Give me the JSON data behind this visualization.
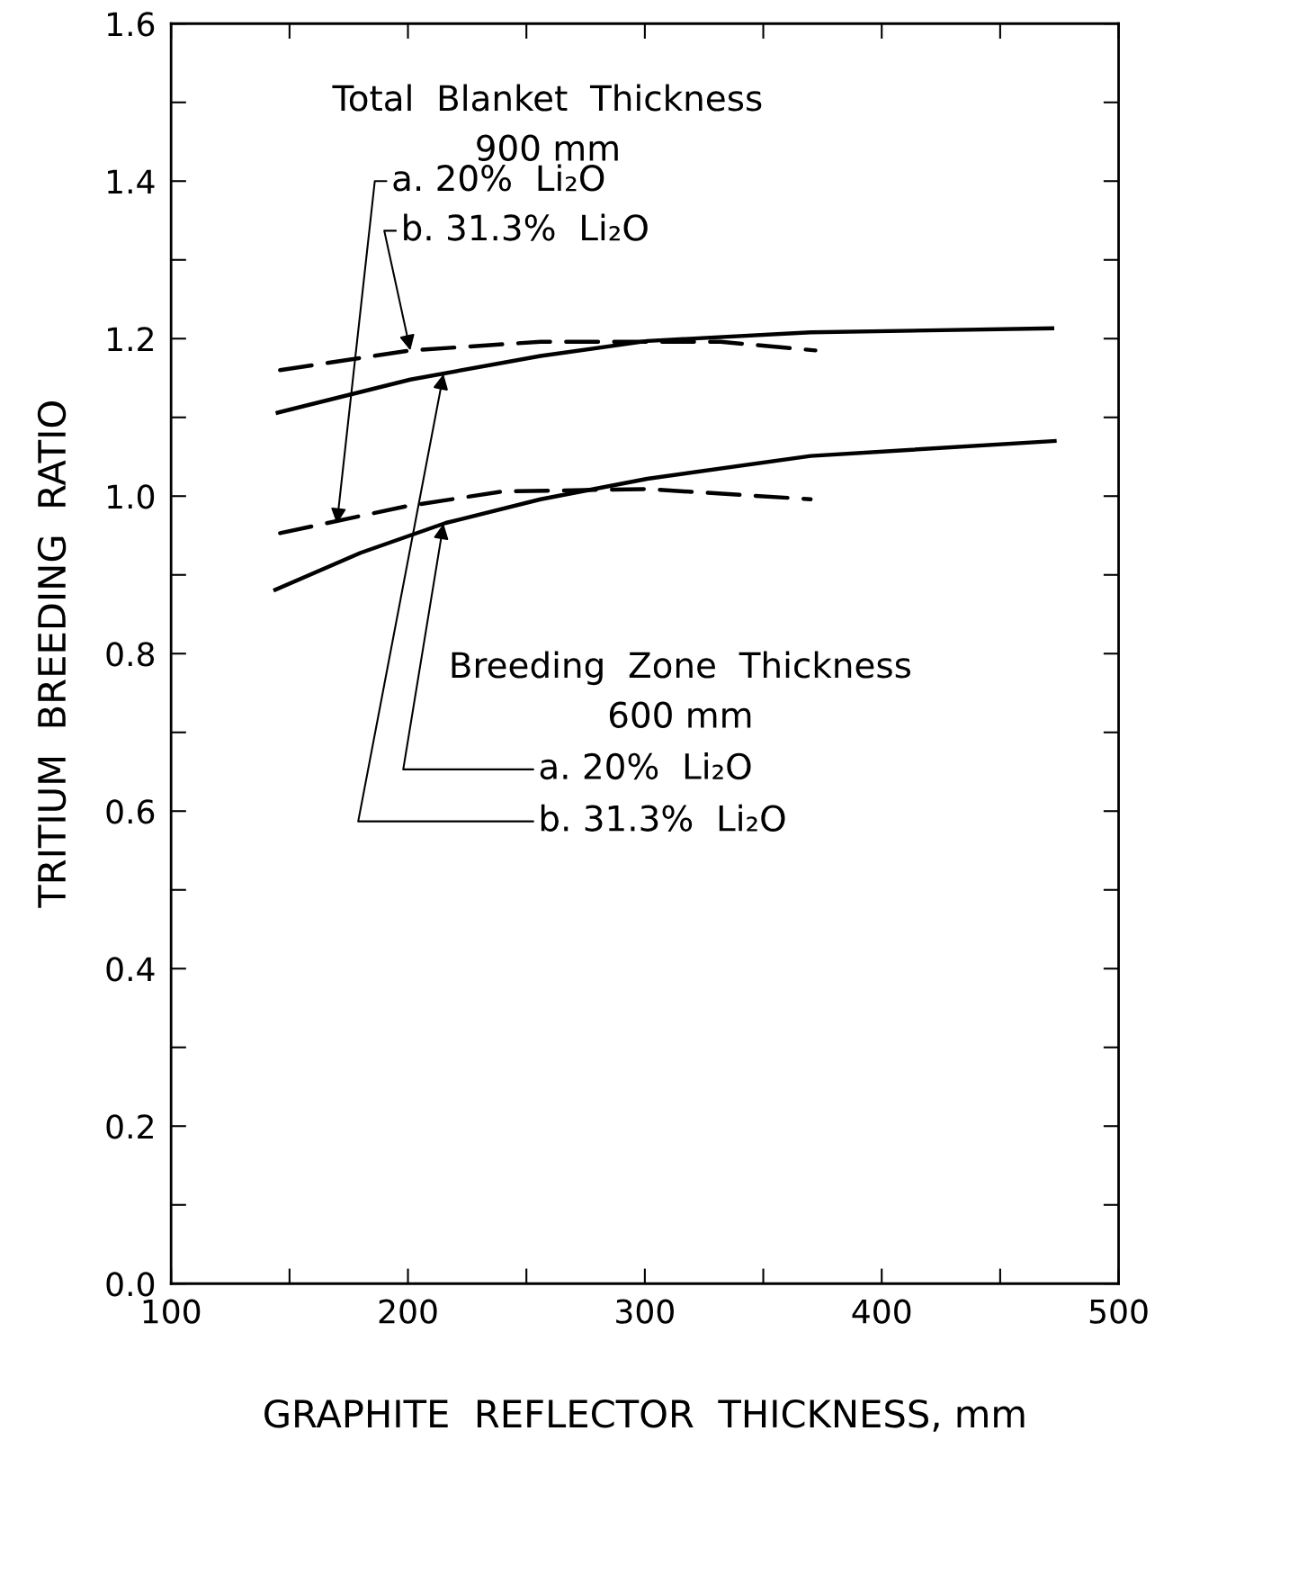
{
  "chart_data": {
    "type": "line",
    "xlabel": "GRAPHITE  REFLECTOR  THICKNESS, mm",
    "ylabel": "TRITIUM  BREEDING  RATIO",
    "xlim": [
      100,
      500
    ],
    "ylim": [
      0.0,
      1.6
    ],
    "xticks": [
      100,
      200,
      300,
      400,
      500
    ],
    "yticks": [
      {
        "value": 0.0,
        "label": "0.0"
      },
      0.2,
      0.4,
      0.6,
      0.8,
      {
        "value": 1.0,
        "label": "1.0"
      },
      1.2,
      1.4,
      1.6
    ],
    "grid": false,
    "legend": false,
    "series": [
      {
        "color": "#000000",
        "line_style": "dashed",
        "x": [
          146,
          199,
          240,
          301,
          370
        ],
        "values": [
          0.953,
          0.987,
          1.006,
          1.009,
          0.996
        ]
      },
      {
        "color": "#000000",
        "line_style": "dashed",
        "x": [
          146,
          201,
          256,
          332,
          372
        ],
        "values": [
          1.16,
          1.185,
          1.196,
          1.196,
          1.185
        ]
      },
      {
        "color": "#000000",
        "line_style": "solid",
        "x": [
          144,
          180,
          216,
          256,
          301,
          370,
          473
        ],
        "values": [
          0.881,
          0.928,
          0.966,
          0.996,
          1.022,
          1.051,
          1.07
        ]
      },
      {
        "color": "#000000",
        "line_style": "solid",
        "x": [
          145,
          201,
          256,
          301,
          370,
          472
        ],
        "values": [
          1.106,
          1.148,
          1.178,
          1.197,
          1.208,
          1.213
        ]
      }
    ],
    "annotations": [
      "Total  Blanket  Thickness\n900 mm",
      {
        "text": "a. 20%  Li₂O",
        "x": 170,
        "y": 0.965
      },
      {
        "text": "b. 31.3%  Li₂O",
        "x": 201,
        "y": 1.185
      },
      "Breeding  Zone  Thickness\n600 mm",
      {
        "text": "a. 20%  Li₂O",
        "x": 215,
        "y": 0.965
      },
      {
        "text": "b. 31.3%  Li₂O",
        "x": 215,
        "y": 1.155
      }
    ]
  }
}
